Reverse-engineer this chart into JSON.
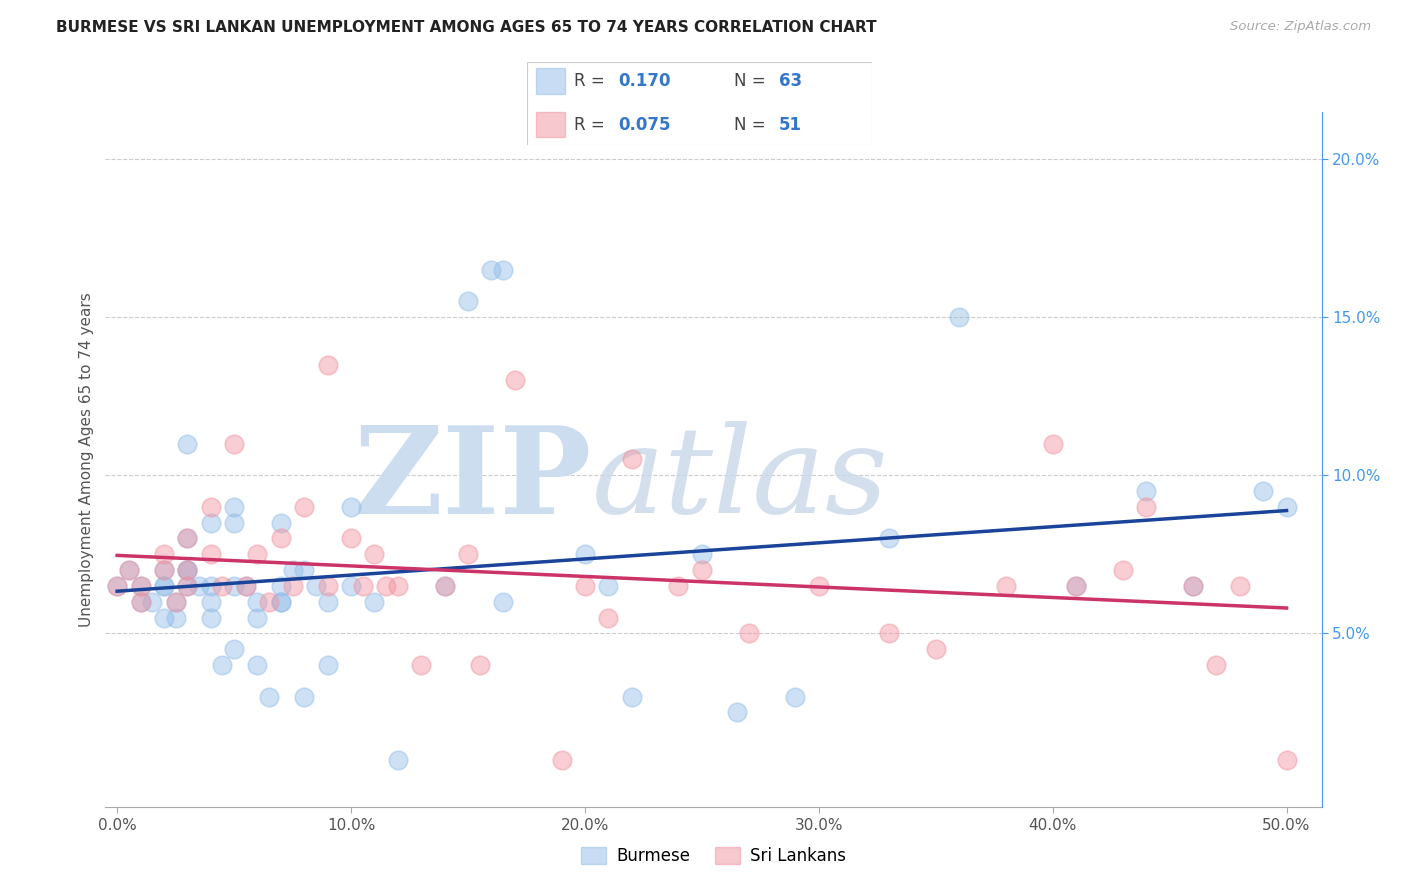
{
  "title": "BURMESE VS SRI LANKAN UNEMPLOYMENT AMONG AGES 65 TO 74 YEARS CORRELATION CHART",
  "source": "Source: ZipAtlas.com",
  "ylabel": "Unemployment Among Ages 65 to 74 years",
  "x_ticks": [
    0.0,
    0.1,
    0.2,
    0.3,
    0.4,
    0.5
  ],
  "x_tick_labels": [
    "0.0%",
    "10.0%",
    "20.0%",
    "30.0%",
    "40.0%",
    "50.0%"
  ],
  "y_ticks_right": [
    0.05,
    0.1,
    0.15,
    0.2
  ],
  "y_tick_labels_right": [
    "5.0%",
    "10.0%",
    "15.0%",
    "20.0%"
  ],
  "xlim": [
    -0.005,
    0.515
  ],
  "ylim": [
    -0.005,
    0.215
  ],
  "legend_r1": "0.170",
  "legend_n1": "63",
  "legend_r2": "0.075",
  "legend_n2": "51",
  "burmese_color": "#92bce8",
  "srilankans_color": "#f0929e",
  "burmese_edge": "#6699cc",
  "srilankans_edge": "#cc6677",
  "line_blue": "#1a4499",
  "line_pink": "#cc3366",
  "burmese_x": [
    0.0,
    0.005,
    0.01,
    0.01,
    0.015,
    0.02,
    0.02,
    0.02,
    0.02,
    0.025,
    0.025,
    0.03,
    0.03,
    0.03,
    0.03,
    0.03,
    0.035,
    0.04,
    0.04,
    0.04,
    0.04,
    0.045,
    0.05,
    0.05,
    0.05,
    0.05,
    0.055,
    0.06,
    0.06,
    0.06,
    0.065,
    0.07,
    0.07,
    0.07,
    0.07,
    0.075,
    0.08,
    0.08,
    0.085,
    0.09,
    0.09,
    0.1,
    0.1,
    0.11,
    0.12,
    0.14,
    0.15,
    0.16,
    0.165,
    0.165,
    0.2,
    0.21,
    0.22,
    0.25,
    0.265,
    0.29,
    0.33,
    0.36,
    0.41,
    0.44,
    0.46,
    0.49,
    0.5
  ],
  "burmese_y": [
    0.065,
    0.07,
    0.06,
    0.065,
    0.06,
    0.055,
    0.07,
    0.065,
    0.065,
    0.055,
    0.06,
    0.07,
    0.08,
    0.065,
    0.11,
    0.07,
    0.065,
    0.06,
    0.085,
    0.065,
    0.055,
    0.04,
    0.09,
    0.065,
    0.045,
    0.085,
    0.065,
    0.06,
    0.055,
    0.04,
    0.03,
    0.085,
    0.065,
    0.06,
    0.06,
    0.07,
    0.03,
    0.07,
    0.065,
    0.06,
    0.04,
    0.09,
    0.065,
    0.06,
    0.01,
    0.065,
    0.155,
    0.165,
    0.165,
    0.06,
    0.075,
    0.065,
    0.03,
    0.075,
    0.025,
    0.03,
    0.08,
    0.15,
    0.065,
    0.095,
    0.065,
    0.095,
    0.09
  ],
  "srilankans_x": [
    0.0,
    0.005,
    0.01,
    0.01,
    0.02,
    0.02,
    0.025,
    0.03,
    0.03,
    0.03,
    0.04,
    0.04,
    0.045,
    0.05,
    0.055,
    0.06,
    0.065,
    0.07,
    0.075,
    0.08,
    0.09,
    0.09,
    0.1,
    0.105,
    0.11,
    0.115,
    0.12,
    0.13,
    0.14,
    0.15,
    0.155,
    0.17,
    0.19,
    0.2,
    0.21,
    0.22,
    0.24,
    0.25,
    0.27,
    0.3,
    0.33,
    0.35,
    0.38,
    0.4,
    0.41,
    0.43,
    0.44,
    0.46,
    0.47,
    0.48,
    0.5
  ],
  "srilankans_y": [
    0.065,
    0.07,
    0.065,
    0.06,
    0.075,
    0.07,
    0.06,
    0.08,
    0.07,
    0.065,
    0.09,
    0.075,
    0.065,
    0.11,
    0.065,
    0.075,
    0.06,
    0.08,
    0.065,
    0.09,
    0.135,
    0.065,
    0.08,
    0.065,
    0.075,
    0.065,
    0.065,
    0.04,
    0.065,
    0.075,
    0.04,
    0.13,
    0.01,
    0.065,
    0.055,
    0.105,
    0.065,
    0.07,
    0.05,
    0.065,
    0.05,
    0.045,
    0.065,
    0.11,
    0.065,
    0.07,
    0.09,
    0.065,
    0.04,
    0.065,
    0.01
  ]
}
